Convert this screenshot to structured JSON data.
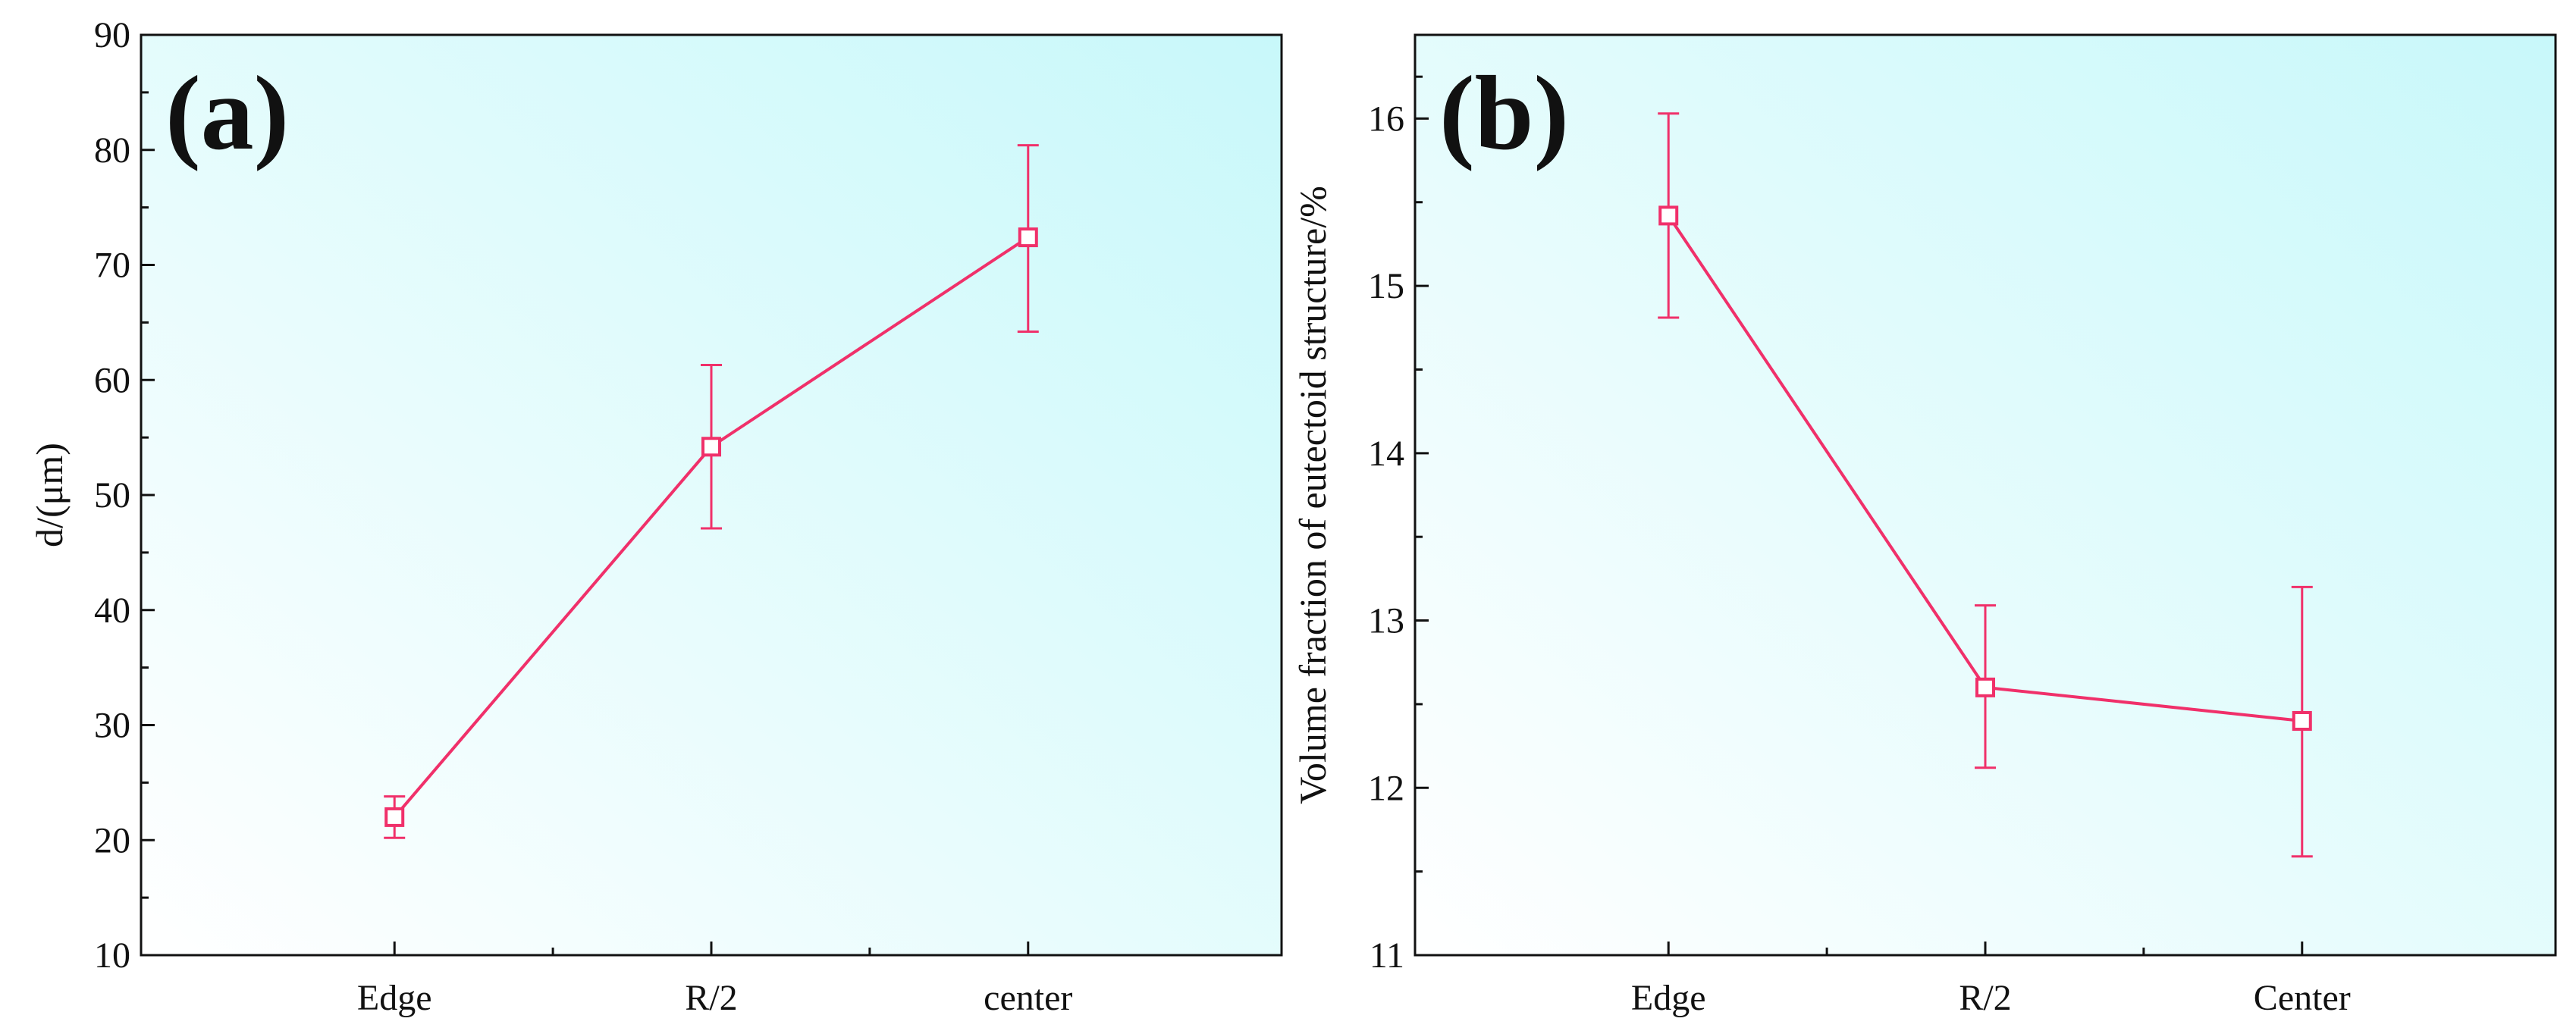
{
  "figure": {
    "series_color": "#f0306a",
    "gradient_colors": [
      "#ffffff",
      "#c8f8fa"
    ]
  },
  "chart_data": [
    {
      "type": "line",
      "panel_label": "(a)",
      "title": "",
      "xlabel": "",
      "ylabel": "d/(μm)",
      "categories": [
        "Edge",
        "R/2",
        "center"
      ],
      "ylim": [
        10,
        90
      ],
      "yticks": [
        10,
        20,
        30,
        40,
        50,
        60,
        70,
        80,
        90
      ],
      "ytick_labels": [
        "10",
        "20",
        "30",
        "40",
        "50",
        "60",
        "70",
        "80",
        "90"
      ],
      "grid": false,
      "series": [
        {
          "name": "d",
          "values": [
            22,
            54.2,
            72.4
          ],
          "err_low": [
            1.8,
            7.1,
            8.2
          ],
          "err_high": [
            1.8,
            7.1,
            8.0
          ],
          "marker": "open-square"
        }
      ]
    },
    {
      "type": "line",
      "panel_label": "(b)",
      "title": "",
      "xlabel": "",
      "ylabel": "Volume fraction of eutectoid structure/%",
      "categories": [
        "Edge",
        "R/2",
        "Center"
      ],
      "ylim": [
        11,
        16.5
      ],
      "yticks": [
        11,
        12,
        13,
        14,
        15,
        16
      ],
      "ytick_labels": [
        "11",
        "12",
        "13",
        "14",
        "15",
        "16"
      ],
      "grid": false,
      "series": [
        {
          "name": "Volume fraction",
          "values": [
            15.42,
            12.6,
            12.4
          ],
          "err_low": [
            0.61,
            0.48,
            0.81
          ],
          "err_high": [
            0.61,
            0.49,
            0.8
          ],
          "marker": "open-square"
        }
      ]
    }
  ]
}
